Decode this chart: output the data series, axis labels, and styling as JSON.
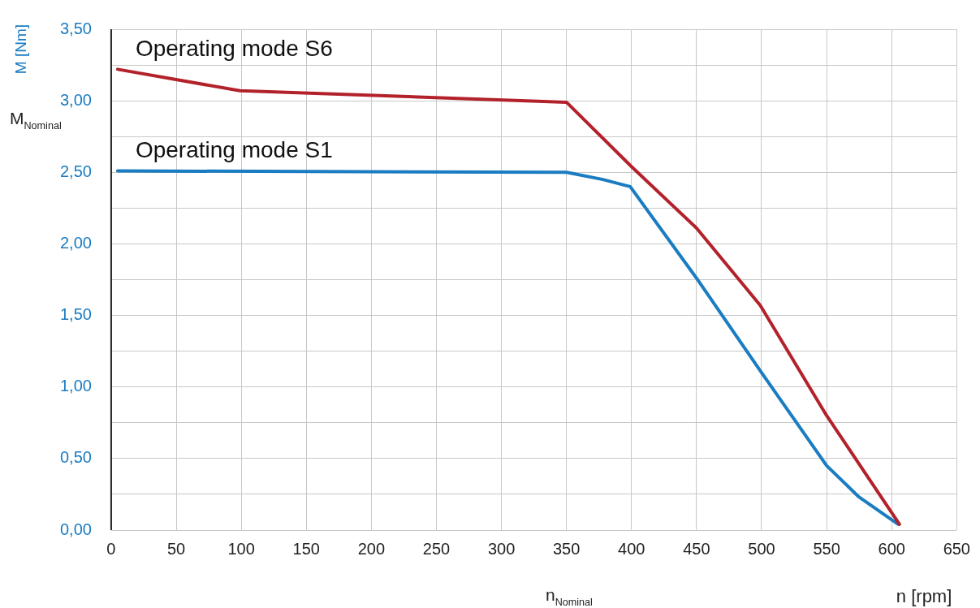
{
  "chart_data": {
    "type": "line",
    "xlabel": "n [rpm]",
    "ylabel": "M [Nm]",
    "xlim": [
      0,
      650
    ],
    "xticks": [
      0,
      50,
      100,
      150,
      200,
      250,
      300,
      350,
      400,
      450,
      500,
      550,
      600,
      650
    ],
    "ylim": [
      0,
      3.5
    ],
    "yticks": [
      {
        "value": 0,
        "label": "0,00"
      },
      {
        "value": 0.25,
        "label": null
      },
      {
        "value": 0.5,
        "label": "0,50"
      },
      {
        "value": 0.75,
        "label": null
      },
      {
        "value": 1,
        "label": "1,00"
      },
      {
        "value": 1.25,
        "label": null
      },
      {
        "value": 1.5,
        "label": "1,50"
      },
      {
        "value": 1.75,
        "label": null
      },
      {
        "value": 2,
        "label": "2,00"
      },
      {
        "value": 2.25,
        "label": null
      },
      {
        "value": 2.5,
        "label": "2,50"
      },
      {
        "value": 2.75,
        "label": null
      },
      {
        "value": 3,
        "label": "3,00"
      },
      {
        "value": 3.25,
        "label": null
      },
      {
        "value": 3.5,
        "label": "3,50"
      }
    ],
    "grid": true,
    "legend": false,
    "marker": "none",
    "line_style": "solid",
    "annotations": [
      "M$_{Nominal}$",
      "n$_{Nominal}$"
    ],
    "series": [
      {
        "name": "Operating mode S6",
        "color": "#b3222a",
        "x": [
          5,
          99,
          350,
          400,
          450,
          499,
          550,
          606
        ],
        "values": [
          3.22,
          3.07,
          2.99,
          2.54,
          2.11,
          1.57,
          0.8,
          0.04
        ]
      },
      {
        "name": "Operating mode S1",
        "color": "#1a7cc1",
        "x": [
          5,
          350,
          378,
          399,
          450,
          500,
          550,
          575,
          605
        ],
        "values": [
          2.51,
          2.5,
          2.45,
          2.4,
          1.76,
          1.1,
          0.45,
          0.23,
          0.04
        ]
      }
    ]
  }
}
